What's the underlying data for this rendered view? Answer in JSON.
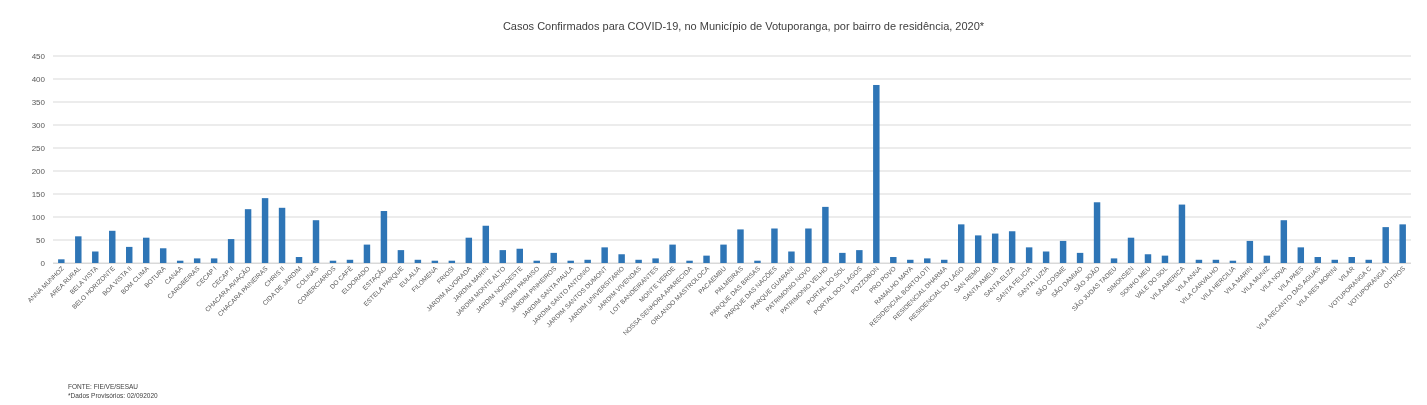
{
  "chart_data": {
    "type": "bar",
    "title": "Casos Confirmados para COVID-19,  no Município de Votuporanga, por bairro de residência, 2020*",
    "categories": [
      "ANNA MUNHOZ",
      "AREA RURAL",
      "BELA VISTA",
      "BELO HORIZONTE",
      "BOA VISTA II",
      "BOM CLIMA",
      "BOTURA",
      "CANAA",
      "CAROBEIRAS",
      "CECAP I",
      "CECAP II",
      "CHACARA AVIAÇÃO",
      "CHACARA PAINEIRAS",
      "CHRIS II",
      "CIDA DE JARDIM",
      "COLINAS",
      "COMERCIARIOS",
      "DO CAFÉ",
      "ELDORADO",
      "ESTAÇÃO",
      "ESTELA PARQUE",
      "EULALIA",
      "FILOMENA",
      "FRIOSI",
      "JARDIM ALVORADA",
      "JARDIM MARIN",
      "JARDIM MONTE ALTO",
      "JARDIM NOROESTE",
      "JARDIM PARAISO",
      "JARDIM PINHEIROS",
      "JARDIM SANTA PAULA",
      "JARDIM SANTO ANTONIO",
      "JARDIM SANTOS DUMONT",
      "JARDIM UNIVERSITARIO",
      "JARDIM VIVENDAS",
      "LOT BANDEIRANTES",
      "MONTE VERDE",
      "NOSSA SENHORA APARECIDA",
      "ORLANDO MASTROLOCA",
      "PACAEMBU",
      "PALMEIRAS",
      "PARQUE DAS BRISAS",
      "PARQUE DAS NACÕES",
      "PARQUE GUARANI",
      "PATRIMONIO NOVO",
      "PATRIMONIO VELHO",
      "PORTAL DO SOL",
      "PORTAL DOS LAGOS",
      "POZZOBON",
      "PRO POVO",
      "RAMALHO MAYA",
      "RESIDENCIAL BORTOLOTI",
      "RESIDENCIAL DHARMA",
      "RESIDENCIAL DO LAGO",
      "SAN REMO",
      "SANTA AMELIA",
      "SANTA ELIZA",
      "SANTA FELICIA",
      "SANTA LUZIA",
      "SÃO COSME",
      "SÃO DAMIAO",
      "SÃO JOÃO",
      "SÃO JUDAS TADEU",
      "SIMONSEN",
      "SONHO MEU",
      "VALE DO SOL",
      "VILA AMERICA",
      "VILA ANNA",
      "VILA CARVALHO",
      "VILA HERCILIA",
      "VILA MARIN",
      "VILA MUNIZ",
      "VILA NOVA",
      "VILA PAES",
      "VILA RECANTO DAS AGUAS",
      "VILA RES MORINI",
      "VILAR",
      "VOTUPORANGA C",
      "VOTUPORANGA I",
      "OUTROS"
    ],
    "values": [
      8,
      58,
      25,
      70,
      35,
      55,
      32,
      5,
      10,
      10,
      52,
      117,
      141,
      120,
      13,
      93,
      5,
      7,
      40,
      113,
      28,
      7,
      5,
      5,
      55,
      81,
      28,
      31,
      5,
      22,
      5,
      7,
      34,
      19,
      7,
      10,
      40,
      5,
      16,
      40,
      73,
      5,
      75,
      25,
      75,
      122,
      22,
      28,
      387,
      13,
      7,
      10,
      7,
      84,
      60,
      64,
      69,
      34,
      25,
      48,
      22,
      132,
      10,
      55,
      19,
      16,
      127,
      7,
      7,
      5,
      48,
      16,
      93,
      34,
      13,
      7,
      13,
      7,
      78,
      84
    ],
    "color": "#2e75b6",
    "ylim": [
      0,
      450
    ],
    "yticks": [
      0,
      50,
      100,
      150,
      200,
      250,
      300,
      350,
      400,
      450
    ],
    "grid": "y",
    "annotations": [
      "FONTE: FIE/VE/SESAU",
      "*Dados Provisórios: 02/092020"
    ]
  }
}
